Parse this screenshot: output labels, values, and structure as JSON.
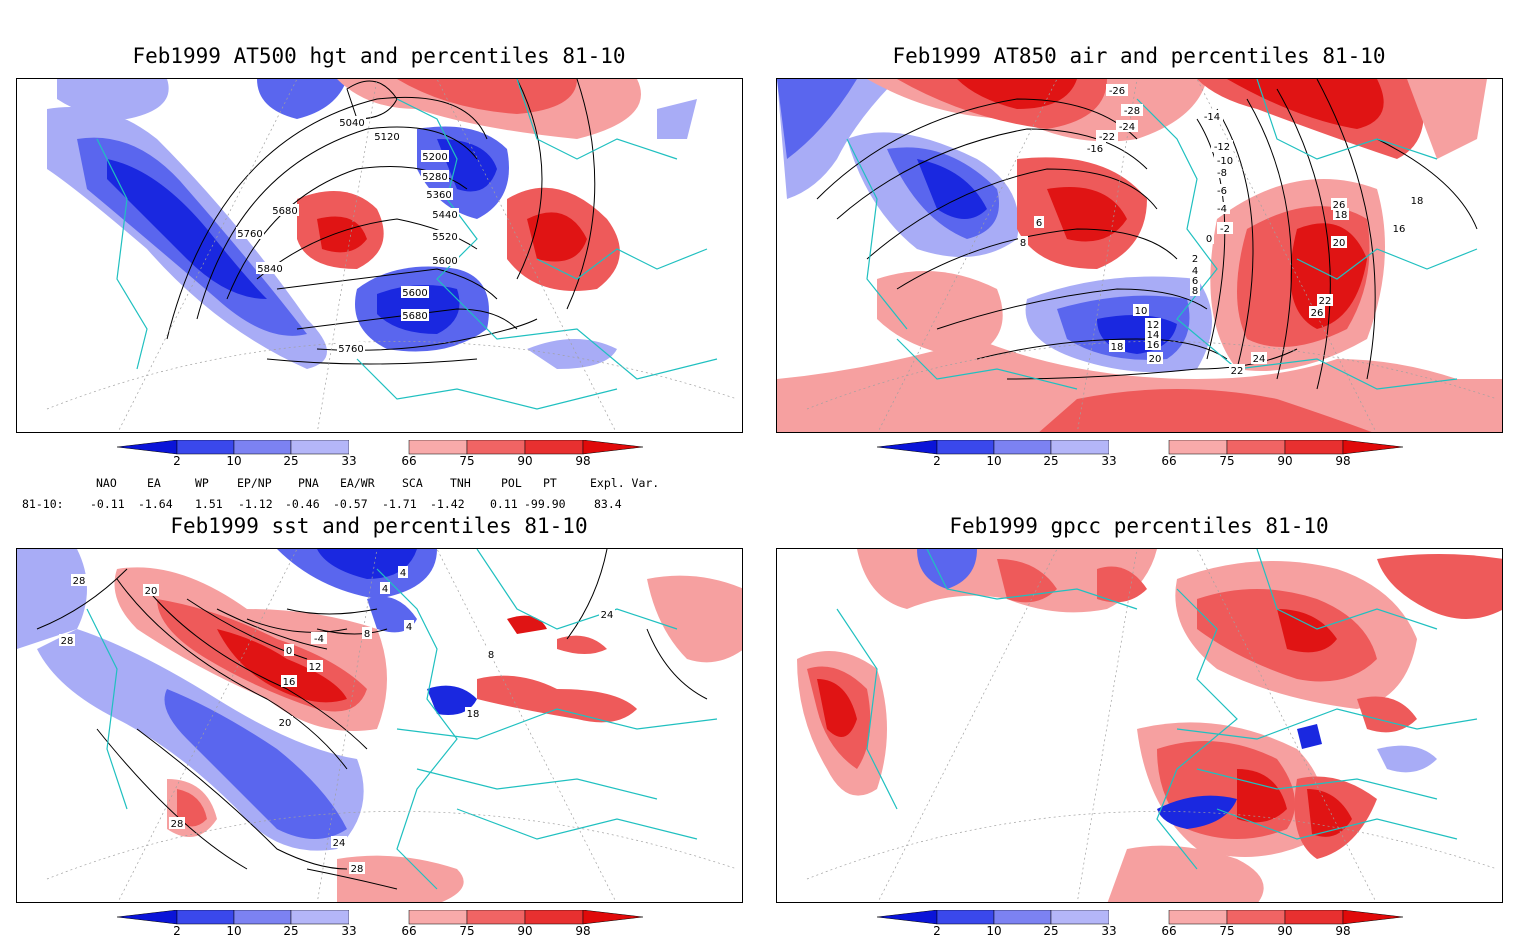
{
  "panels": [
    {
      "title": "Feb1999 AT500 hgt and percentiles 81-10",
      "contour_labels": [
        "5040",
        "5120",
        "5200",
        "5280",
        "5360",
        "5440",
        "5520",
        "5600",
        "5680",
        "5760",
        "5840",
        "5600",
        "5680",
        "5760"
      ]
    },
    {
      "title": "Feb1999 AT850 air and percentiles 81-10",
      "contour_labels": [
        "-26",
        "-28",
        "-24",
        "-22",
        "-16",
        "-14",
        "-12",
        "-10",
        "-8",
        "-6",
        "-4",
        "-2",
        "0",
        "2",
        "4",
        "6",
        "8",
        "10",
        "12",
        "14",
        "16",
        "18",
        "20",
        "22",
        "24",
        "26",
        "18",
        "20",
        "22",
        "26",
        "18",
        "16",
        "6",
        "8"
      ]
    },
    {
      "title": "Feb1999 sst and percentiles 81-10",
      "contour_labels": [
        "28",
        "20",
        "28",
        "0",
        "-4",
        "4",
        "8",
        "4",
        "12",
        "16",
        "20",
        "24",
        "28",
        "28",
        "18",
        "24",
        "8",
        "4"
      ]
    },
    {
      "title": "Feb1999 gpcc percentiles 81-10",
      "contour_labels": []
    }
  ],
  "colorbar": {
    "labels": [
      "2",
      "10",
      "25",
      "33",
      "66",
      "75",
      "90",
      "98"
    ],
    "colors": [
      "#0a14d8",
      "#3a48ec",
      "#7c82f2",
      "#b4b6f8",
      "#ffffff",
      "#f8aaaa",
      "#f06464",
      "#e83030",
      "#e00a0a"
    ]
  },
  "indices": {
    "headers": [
      "NAO",
      "EA",
      "WP",
      "EP/NP",
      "PNA",
      "EA/WR",
      "SCA",
      "TNH",
      "POL",
      "PT",
      "Expl. Var."
    ],
    "row_label": "81-10:",
    "values": [
      "-0.11",
      "-1.64",
      "1.51",
      "-1.12",
      "-0.46",
      "-0.57",
      "-1.71",
      "-1.42",
      "0.11",
      "-99.90",
      "83.4"
    ]
  },
  "colors": {
    "coast": "#20c0c0",
    "blue_strong": "#1a28e0",
    "blue_mid": "#5a66ee",
    "blue_light": "#a8acf6",
    "red_light": "#f6a0a0",
    "red_mid": "#ee5a5a",
    "red_strong": "#e01414",
    "grid": "#a0a0a0"
  }
}
